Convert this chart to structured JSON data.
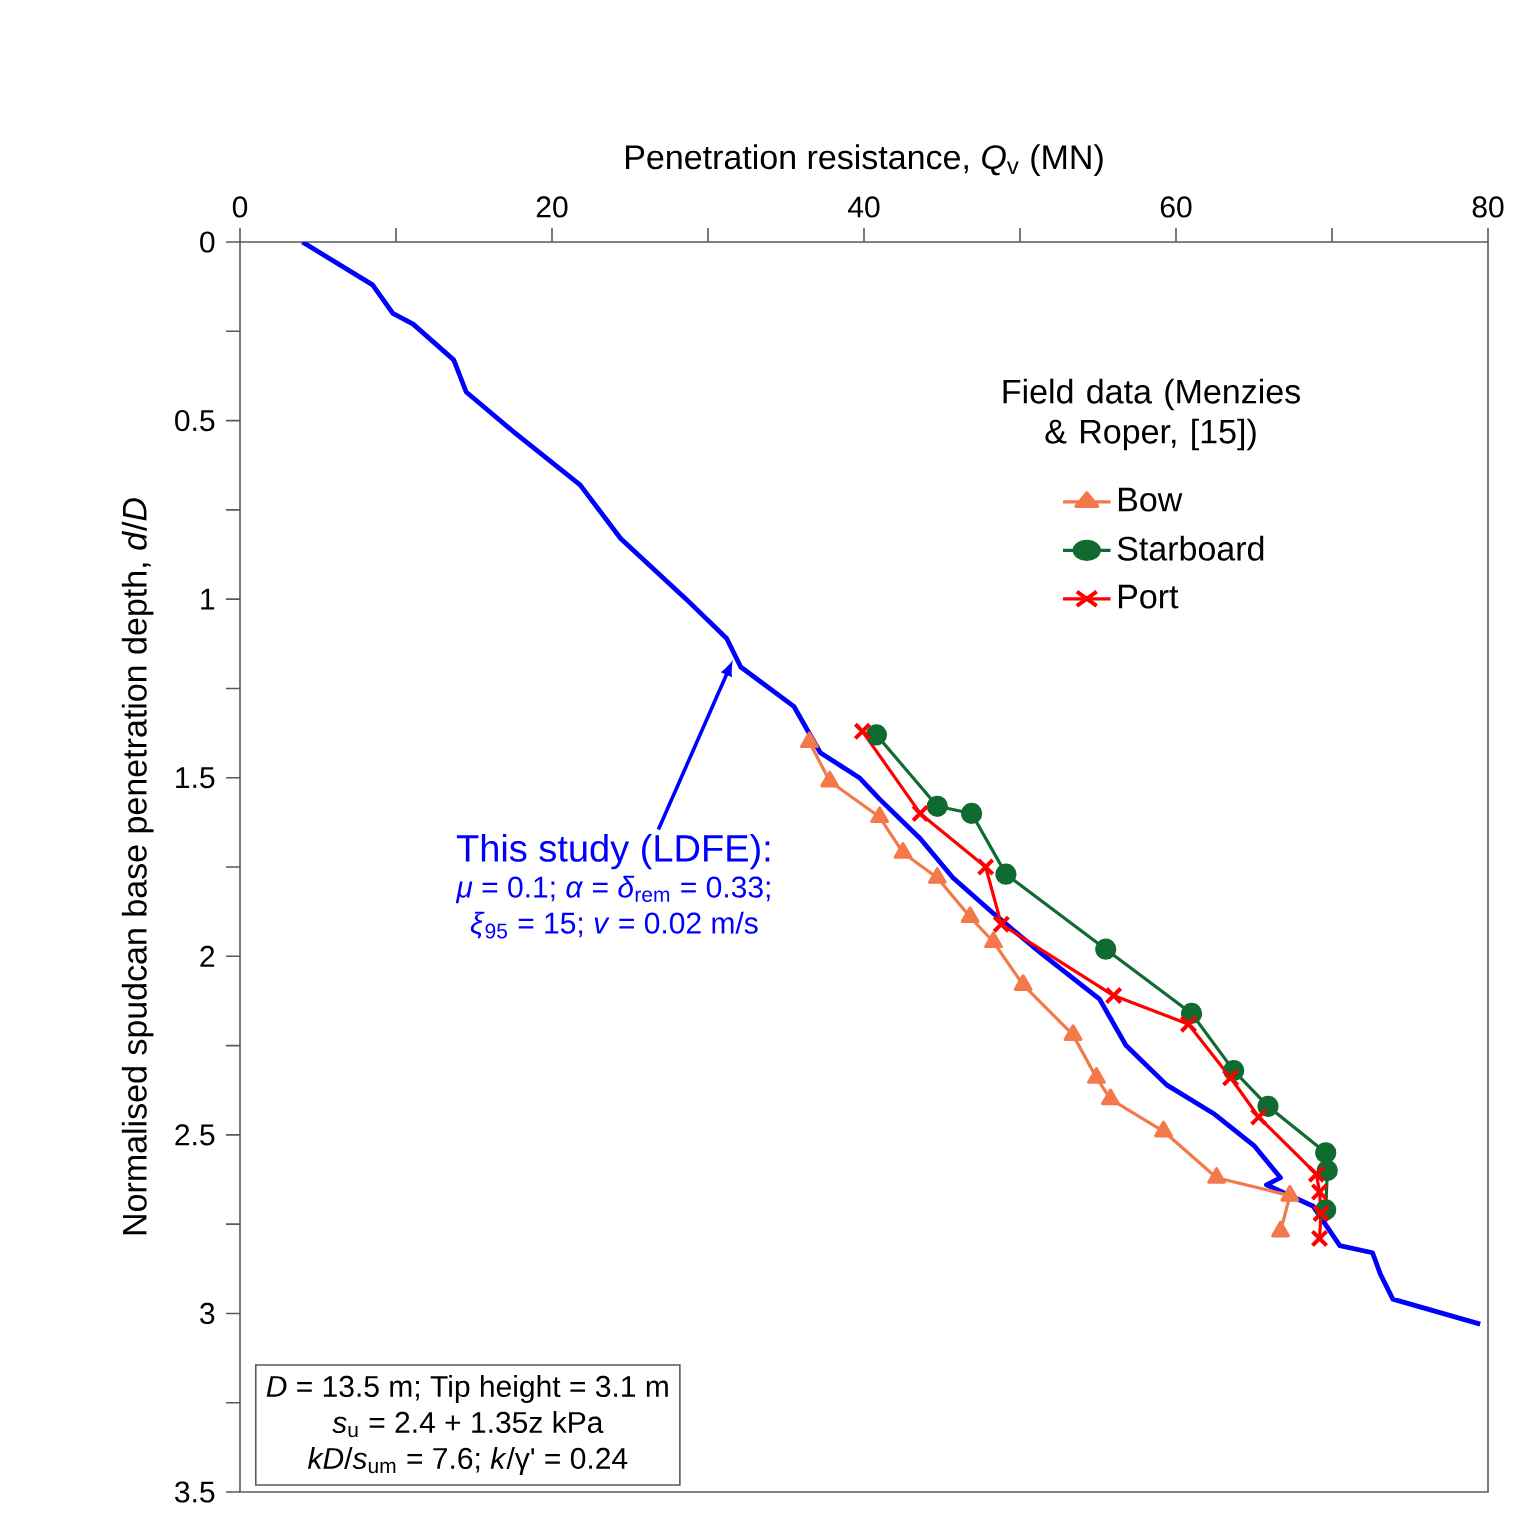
{
  "chart_data": {
    "type": "line",
    "xlabel": "Penetration resistance, *Q*$_{v}$ (MN)",
    "ylabel": "Normalised spudcan base penetration depth, *d*/*D*",
    "legend_title": "Field data (Menzies & Roper, [15])",
    "legend": "top right",
    "xlim": [
      0,
      80
    ],
    "ylim": [
      3.5,
      0
    ],
    "xticks": [
      0,
      {
        "value": 10,
        "label": null
      },
      20,
      {
        "value": 30,
        "label": null
      },
      40,
      {
        "value": 50,
        "label": null
      },
      60,
      {
        "value": 70,
        "label": null
      },
      80
    ],
    "yticks": [
      0,
      {
        "value": 0.25,
        "label": null
      },
      0.5,
      {
        "value": 0.75,
        "label": null
      },
      1,
      {
        "value": 1.25,
        "label": null
      },
      1.5,
      {
        "value": 1.75,
        "label": null
      },
      2,
      {
        "value": 2.25,
        "label": null
      },
      2.5,
      {
        "value": 2.75,
        "label": null
      },
      3,
      {
        "value": 3.25,
        "label": null
      },
      3.5
    ],
    "series": [
      {
        "color": "#0000ff",
        "marker": "none",
        "x": [
          4.0,
          8.5,
          9.8,
          11.1,
          13.7,
          14.5,
          17.5,
          21.8,
          24.4,
          28.6,
          31.2,
          32.1,
          35.5,
          37.2,
          39.7,
          41.0,
          43.6,
          45.7,
          48.3,
          51.3,
          55.1,
          56.8,
          59.4,
          62.4,
          65.0,
          66.7,
          65.8,
          68.8,
          70.5,
          72.6,
          73.1,
          73.9,
          79.5
        ],
        "values": [
          0,
          0.12,
          0.2,
          0.23,
          0.33,
          0.42,
          0.53,
          0.68,
          0.83,
          1.0,
          1.11,
          1.19,
          1.3,
          1.43,
          1.5,
          1.56,
          1.67,
          1.78,
          1.88,
          1.99,
          2.12,
          2.25,
          2.36,
          2.44,
          2.53,
          2.62,
          2.64,
          2.7,
          2.81,
          2.83,
          2.89,
          2.96,
          3.03
        ]
      },
      {
        "name": "Bow",
        "color": "#f4794a",
        "marker": "triangle",
        "x": [
          36.5,
          37.8,
          41.0,
          42.5,
          44.7,
          46.8,
          48.3,
          50.2,
          53.4,
          54.9,
          55.8,
          59.2,
          62.6,
          67.3,
          66.7
        ],
        "values": [
          1.4,
          1.51,
          1.61,
          1.71,
          1.78,
          1.89,
          1.96,
          2.08,
          2.22,
          2.34,
          2.4,
          2.49,
          2.62,
          2.67,
          2.77
        ]
      },
      {
        "name": "Starboard",
        "color": "#0f6b30",
        "marker": "circle",
        "x": [
          40.8,
          44.7,
          46.9,
          49.1,
          55.5,
          61.0,
          63.7,
          65.9,
          69.6,
          69.7,
          69.6
        ],
        "values": [
          1.38,
          1.58,
          1.6,
          1.77,
          1.98,
          2.16,
          2.32,
          2.42,
          2.55,
          2.6,
          2.71
        ]
      },
      {
        "name": "Port",
        "color": "#ff0000",
        "marker": "cross",
        "x": [
          39.9,
          43.6,
          47.8,
          48.8,
          56.0,
          60.8,
          63.5,
          65.3,
          69.0,
          69.2,
          69.3,
          69.2
        ],
        "values": [
          1.37,
          1.6,
          1.75,
          1.91,
          2.11,
          2.19,
          2.34,
          2.45,
          2.61,
          2.66,
          2.72,
          2.79
        ]
      }
    ],
    "annotations": [
      {
        "text": "This study (LDFE):",
        "x": 31.6,
        "y": 1.17
      },
      "*μ* = 0.1; *α* = *δ*$_{rem}$ = 0.33;",
      "*ξ*$_{95}$ = 15; *v* = 0.02 m/s",
      "*D* = 13.5 m; Tip height = 3.1 m",
      "*s*$_{u}$ = 2.4 + 1.35z kPa",
      "*kD*/*s*$_{um}$ = 7.6; *k*/γ' = 0.24"
    ]
  }
}
